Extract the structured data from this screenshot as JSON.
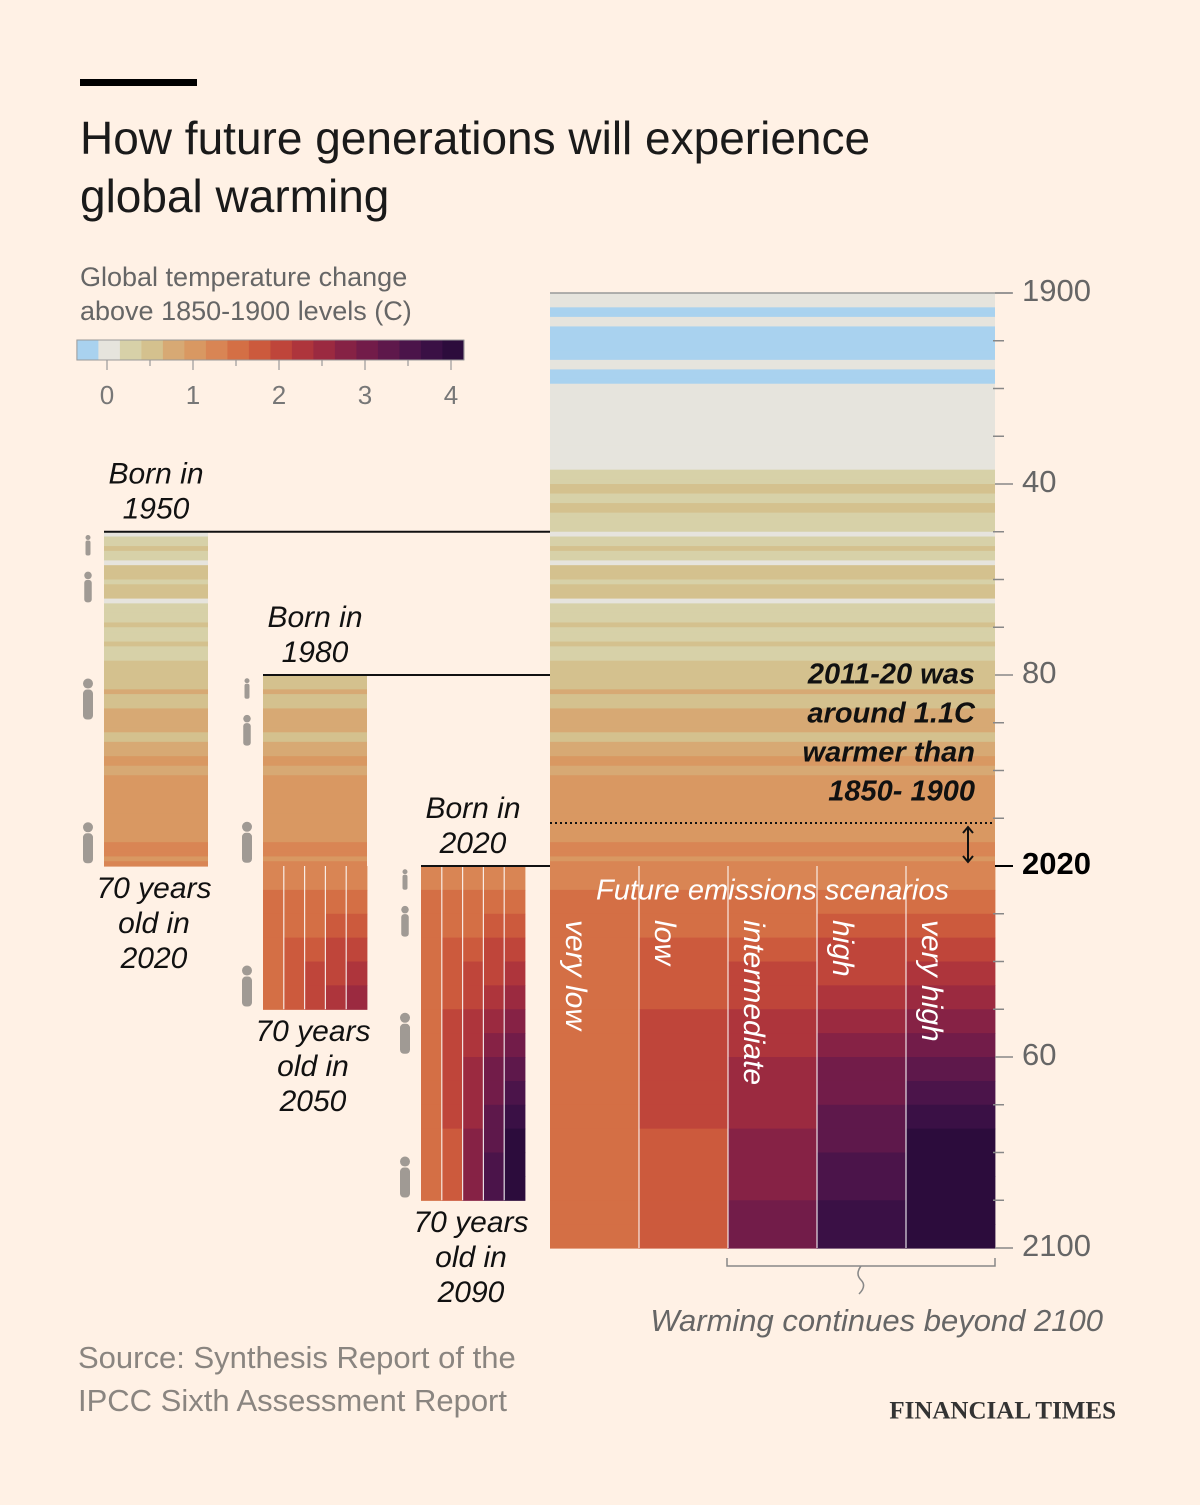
{
  "chart_data": {
    "type": "stripes",
    "title_lines": [
      "How future generations will experience",
      "global warming"
    ],
    "subtitle_lines": [
      "Global temperature change",
      "above 1850-1900 levels (C)"
    ],
    "color_edges": [
      -0.35,
      -0.1,
      0.15,
      0.4,
      0.65,
      0.9,
      1.15,
      1.4,
      1.65,
      1.9,
      2.15,
      2.4,
      2.65,
      2.9,
      3.15,
      3.4,
      3.65,
      3.9,
      4.15
    ],
    "colors": [
      "#a9d2ef",
      "#e6e4dd",
      "#d7d1a8",
      "#d4c18e",
      "#d7a974",
      "#d99862",
      "#d98554",
      "#d46f45",
      "#cc5a3d",
      "#bf453a",
      "#ae353c",
      "#9b2a40",
      "#862245",
      "#721c49",
      "#5e184b",
      "#4b144a",
      "#3a1045",
      "#2c0c3c"
    ],
    "cticks": [
      0,
      1,
      2,
      3,
      4
    ],
    "cminorticks": [
      0.5,
      1.5,
      2.5,
      3.5
    ],
    "x": [
      1900,
      1901,
      1902,
      1903,
      1904,
      1905,
      1906,
      1907,
      1908,
      1909,
      1910,
      1911,
      1912,
      1913,
      1914,
      1915,
      1916,
      1917,
      1918,
      1919,
      1920,
      1921,
      1922,
      1923,
      1924,
      1925,
      1926,
      1927,
      1928,
      1929,
      1930,
      1931,
      1932,
      1933,
      1934,
      1935,
      1936,
      1937,
      1938,
      1939,
      1940,
      1941,
      1942,
      1943,
      1944,
      1945,
      1946,
      1947,
      1948,
      1949,
      1950,
      1951,
      1952,
      1953,
      1954,
      1955,
      1956,
      1957,
      1958,
      1959,
      1960,
      1961,
      1962,
      1963,
      1964,
      1965,
      1966,
      1967,
      1968,
      1969,
      1970,
      1971,
      1972,
      1973,
      1974,
      1975,
      1976,
      1977,
      1978,
      1979,
      1980,
      1981,
      1982,
      1983,
      1984,
      1985,
      1986,
      1987,
      1988,
      1989,
      1990,
      1991,
      1992,
      1993,
      1994,
      1995,
      1996,
      1997,
      1998,
      1999,
      2000,
      2001,
      2002,
      2003,
      2004,
      2005,
      2006,
      2007,
      2008,
      2009,
      2010,
      2011,
      2012,
      2013,
      2014,
      2015,
      2016,
      2017,
      2018,
      2019
    ],
    "values": [
      0.0,
      0.0,
      -0.1,
      -0.2,
      -0.3,
      -0.1,
      -0.1,
      -0.3,
      -0.3,
      -0.3,
      -0.3,
      -0.3,
      -0.2,
      -0.2,
      0.0,
      0.0,
      -0.2,
      -0.3,
      -0.2,
      -0.1,
      -0.1,
      0.0,
      -0.1,
      -0.1,
      -0.1,
      0.0,
      0.1,
      0.0,
      0.0,
      -0.1,
      0.1,
      0.1,
      0.1,
      0.0,
      0.1,
      0.1,
      0.1,
      0.2,
      0.3,
      0.3,
      0.4,
      0.4,
      0.3,
      0.3,
      0.5,
      0.4,
      0.2,
      0.2,
      0.2,
      0.2,
      0.1,
      0.3,
      0.3,
      0.4,
      0.2,
      0.2,
      0.1,
      0.4,
      0.4,
      0.4,
      0.3,
      0.4,
      0.4,
      0.4,
      0.1,
      0.2,
      0.3,
      0.3,
      0.3,
      0.4,
      0.3,
      0.2,
      0.3,
      0.4,
      0.2,
      0.3,
      0.2,
      0.5,
      0.4,
      0.5,
      0.6,
      0.6,
      0.5,
      0.7,
      0.5,
      0.5,
      0.6,
      0.7,
      0.8,
      0.7,
      0.8,
      0.8,
      0.6,
      0.6,
      0.7,
      0.8,
      0.7,
      0.9,
      1.0,
      0.8,
      0.8,
      0.9,
      1.0,
      1.0,
      0.9,
      1.0,
      1.0,
      1.0,
      0.9,
      1.0,
      1.1,
      1.0,
      1.0,
      1.1,
      1.1,
      1.2,
      1.3,
      1.2,
      1.1,
      1.2
    ],
    "scenario_bins": [
      2020,
      2025,
      2030,
      2035,
      2040,
      2045,
      2050,
      2055,
      2060,
      2065,
      2070,
      2075,
      2080,
      2085,
      2090,
      2095,
      2100
    ],
    "scenario_group_label": "Future emissions scenarios",
    "series": [
      {
        "name": "very low",
        "values": [
          1.3,
          1.4,
          1.5,
          1.5,
          1.6,
          1.6,
          1.6,
          1.6,
          1.5,
          1.5,
          1.5,
          1.5,
          1.4,
          1.4,
          1.4,
          1.4
        ]
      },
      {
        "name": "low",
        "values": [
          1.3,
          1.5,
          1.6,
          1.7,
          1.8,
          1.8,
          1.9,
          1.9,
          1.9,
          1.9,
          1.9,
          1.8,
          1.8,
          1.8,
          1.8,
          1.8
        ]
      },
      {
        "name": "intermediate",
        "values": [
          1.3,
          1.5,
          1.6,
          1.8,
          1.9,
          2.1,
          2.2,
          2.3,
          2.4,
          2.5,
          2.6,
          2.7,
          2.8,
          2.8,
          2.9,
          2.9
        ]
      },
      {
        "name": "high",
        "values": [
          1.3,
          1.5,
          1.7,
          1.9,
          2.1,
          2.3,
          2.5,
          2.7,
          2.9,
          3.0,
          3.2,
          3.3,
          3.5,
          3.6,
          3.7,
          3.8
        ]
      },
      {
        "name": "very high",
        "values": [
          1.3,
          1.6,
          1.8,
          2.0,
          2.3,
          2.5,
          2.8,
          3.0,
          3.2,
          3.5,
          3.7,
          3.9,
          4.1,
          4.2,
          4.3,
          4.4
        ]
      }
    ],
    "ylim": [
      1900,
      2100
    ],
    "yticks": [
      1900,
      {
        "value": 1940,
        "label": "40"
      },
      {
        "value": 1980,
        "label": "80"
      },
      2020,
      {
        "value": 2060,
        "label": "60"
      },
      2100
    ],
    "yticks_bold": [
      3
    ],
    "yminorticks": [
      1910,
      1920,
      1930,
      1950,
      1960,
      1970,
      1990,
      2000,
      2010,
      2030,
      2040,
      2050,
      2070,
      2080,
      2090
    ],
    "generations": [
      {
        "label_lines": [
          "Born in",
          "1950"
        ],
        "span": [
          1950,
          2020
        ],
        "note_lines": [
          "70 years",
          "old in",
          "2020"
        ]
      },
      {
        "label_lines": [
          "Born in",
          "1980"
        ],
        "span": [
          1980,
          2050
        ],
        "note_lines": [
          "70 years",
          "old in",
          "2050"
        ]
      },
      {
        "label_lines": [
          "Born in",
          "2020"
        ],
        "span": [
          2020,
          2090
        ],
        "note_lines": [
          "70 years",
          "old in",
          "2090"
        ]
      }
    ],
    "annotation": {
      "lines": [
        "2011-20 was",
        "around 1.1C",
        "warmer than",
        "1850- 1900"
      ],
      "span": [
        2011,
        2020
      ]
    },
    "beyond_note": "Warming continues beyond 2100",
    "source_lines": [
      "Source: Synthesis Report of the",
      "IPCC Sixth Assessment Report"
    ],
    "brand": "FINANCIAL TIMES"
  }
}
